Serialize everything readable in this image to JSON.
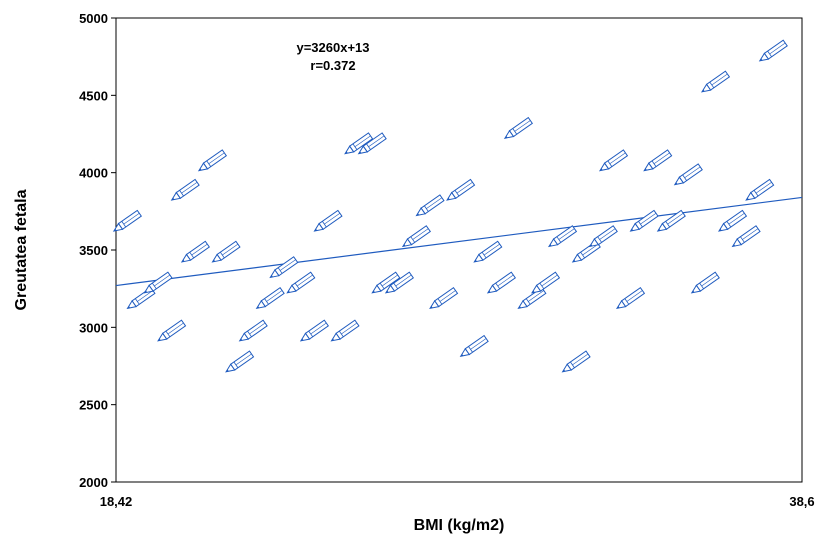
{
  "chart_data": {
    "type": "scatter",
    "title": "",
    "xlabel": "BMI (kg/m2)",
    "ylabel": "Greutatea fetala",
    "xlim": [
      18.42,
      38.6
    ],
    "ylim": [
      2000,
      5000
    ],
    "x_tick_labels": [
      "18,42",
      "38,6"
    ],
    "y_ticks": [
      2000,
      2500,
      3000,
      3500,
      4000,
      4500,
      5000
    ],
    "grid": false,
    "legend": "none",
    "marker": "pencil-icon",
    "colors": {
      "points": "#1f5bbf",
      "line": "#1f5bbf"
    },
    "regression": {
      "equation": "y=3260x+13",
      "r": "r=0.372",
      "y_start": 3270,
      "y_end": 3840
    },
    "points": [
      {
        "x": 18.6,
        "y": 3660
      },
      {
        "x": 19.0,
        "y": 3160
      },
      {
        "x": 19.5,
        "y": 3260
      },
      {
        "x": 19.9,
        "y": 2950
      },
      {
        "x": 20.3,
        "y": 3860
      },
      {
        "x": 20.6,
        "y": 3460
      },
      {
        "x": 21.1,
        "y": 4050
      },
      {
        "x": 21.5,
        "y": 3460
      },
      {
        "x": 21.9,
        "y": 2750
      },
      {
        "x": 22.3,
        "y": 2950
      },
      {
        "x": 22.8,
        "y": 3160
      },
      {
        "x": 23.2,
        "y": 3360
      },
      {
        "x": 23.7,
        "y": 3260
      },
      {
        "x": 24.1,
        "y": 2950
      },
      {
        "x": 24.5,
        "y": 3660
      },
      {
        "x": 25.0,
        "y": 2950
      },
      {
        "x": 25.4,
        "y": 4160
      },
      {
        "x": 25.8,
        "y": 4160
      },
      {
        "x": 26.2,
        "y": 3260
      },
      {
        "x": 26.6,
        "y": 3260
      },
      {
        "x": 27.1,
        "y": 3560
      },
      {
        "x": 27.5,
        "y": 3760
      },
      {
        "x": 27.9,
        "y": 3160
      },
      {
        "x": 28.4,
        "y": 3860
      },
      {
        "x": 28.8,
        "y": 2850
      },
      {
        "x": 29.2,
        "y": 3460
      },
      {
        "x": 29.6,
        "y": 3260
      },
      {
        "x": 30.1,
        "y": 4260
      },
      {
        "x": 30.5,
        "y": 3160
      },
      {
        "x": 30.9,
        "y": 3260
      },
      {
        "x": 31.4,
        "y": 3560
      },
      {
        "x": 31.8,
        "y": 2750
      },
      {
        "x": 32.1,
        "y": 3460
      },
      {
        "x": 32.6,
        "y": 3560
      },
      {
        "x": 32.9,
        "y": 4050
      },
      {
        "x": 33.4,
        "y": 3160
      },
      {
        "x": 33.8,
        "y": 3660
      },
      {
        "x": 34.2,
        "y": 4050
      },
      {
        "x": 34.6,
        "y": 3660
      },
      {
        "x": 35.1,
        "y": 3960
      },
      {
        "x": 35.6,
        "y": 3260
      },
      {
        "x": 35.9,
        "y": 4560
      },
      {
        "x": 36.4,
        "y": 3660
      },
      {
        "x": 36.8,
        "y": 3560
      },
      {
        "x": 37.2,
        "y": 3860
      },
      {
        "x": 37.6,
        "y": 4760
      }
    ]
  }
}
